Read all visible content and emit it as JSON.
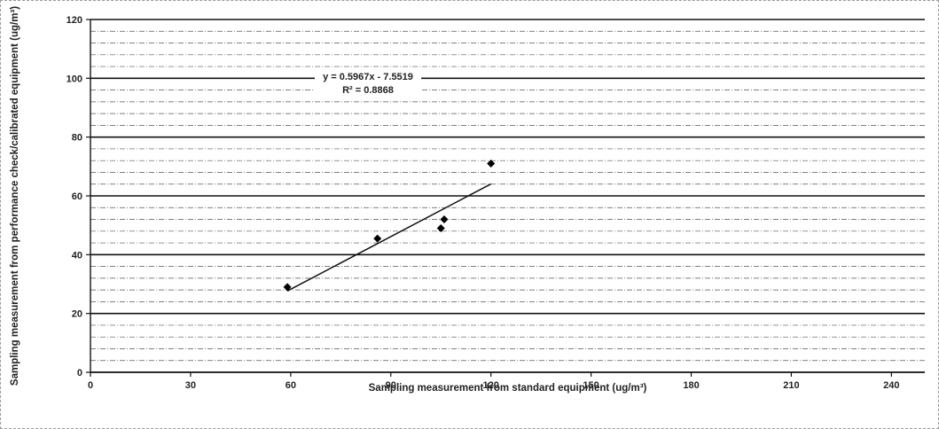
{
  "chart_data": {
    "type": "scatter",
    "xlabel": "Sampling measurement from standard equipment  (ug/m³)",
    "ylabel": "Sampling measurement from performance check/calibrated equipment (ug/m³)",
    "xlim": [
      0,
      250
    ],
    "ylim": [
      0,
      120
    ],
    "xticks": [
      0,
      30,
      60,
      90,
      120,
      150,
      180,
      210,
      240
    ],
    "yticks": [
      0,
      20,
      40,
      60,
      80,
      100,
      120
    ],
    "grid": "horizontal",
    "series": [
      {
        "points": [
          {
            "x": 59,
            "y": 29
          },
          {
            "x": 86,
            "y": 45.5
          },
          {
            "x": 105,
            "y": 49
          },
          {
            "x": 106,
            "y": 52
          },
          {
            "x": 120,
            "y": 71
          }
        ],
        "marker": "diamond",
        "color": "#000000"
      }
    ],
    "trendline": {
      "type": "linear",
      "slope": 0.5967,
      "intercept": -7.5519,
      "x_range": [
        59,
        120
      ],
      "equation": "y = 0.5967x - 7.5519",
      "r_squared": "R² = 0.8868"
    }
  }
}
